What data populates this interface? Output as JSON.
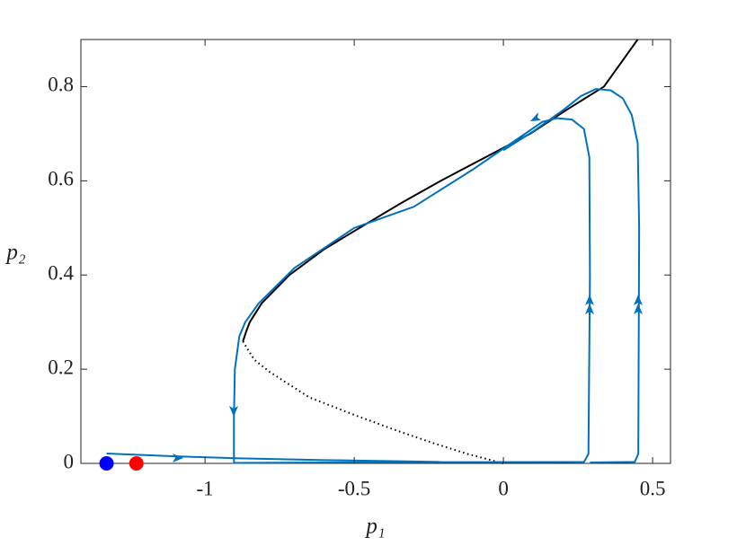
{
  "chart_data": {
    "type": "line",
    "xlabel": "p₁",
    "ylabel": "p₂",
    "xlim": [
      -1.416,
      0.56
    ],
    "ylim": [
      0,
      0.9
    ],
    "xticks": [
      -1,
      -0.5,
      0,
      0.5
    ],
    "yticks": [
      0,
      0.2,
      0.4,
      0.6,
      0.8
    ],
    "series": [
      {
        "color": "#000000",
        "style": "solid",
        "x": [
          -0.873,
          -0.862,
          -0.85,
          -0.81,
          -0.717,
          -0.6,
          -0.482,
          -0.35,
          -0.21,
          -0.06,
          0.09,
          0.21,
          0.337,
          0.45
        ],
        "y": [
          0.259,
          0.28,
          0.3,
          0.34,
          0.4,
          0.455,
          0.5,
          0.55,
          0.6,
          0.65,
          0.7,
          0.75,
          0.8,
          0.9
        ]
      },
      {
        "color": "#000000",
        "style": "dotted",
        "x": [
          -0.873,
          -0.835,
          -0.783,
          -0.65,
          -0.5,
          -0.35,
          -0.24,
          -0.12,
          0
        ],
        "y": [
          0.259,
          0.22,
          0.194,
          0.14,
          0.103,
          0.068,
          0.044,
          0.02,
          0
        ]
      },
      {
        "color": "#0072bd",
        "style": "solid",
        "x": [
          -1.33,
          -1.1,
          -0.9,
          -0.6,
          -0.3,
          -0.22,
          -0.2
        ],
        "y": [
          0.021,
          0.015,
          0.011,
          0.007,
          0.004,
          0.003,
          0.002
        ]
      },
      {
        "color": "#0072bd",
        "style": "solid",
        "x": [
          -0.903,
          -0.6,
          0.27,
          0.285,
          0.29,
          0.288,
          0.27,
          0.23,
          0.18,
          0.13,
          0.05,
          -0.1,
          -0.3,
          -0.5,
          -0.7,
          -0.82,
          -0.865,
          -0.885,
          -0.9,
          -0.903,
          -0.903
        ],
        "y": [
          0.001,
          0.002,
          0.003,
          0.02,
          0.4,
          0.65,
          0.71,
          0.73,
          0.733,
          0.725,
          0.69,
          0.625,
          0.545,
          0.5,
          0.415,
          0.34,
          0.3,
          0.27,
          0.2,
          0.1,
          0
        ]
      },
      {
        "color": "#0072bd",
        "style": "solid",
        "x": [
          0.29,
          0.44,
          0.452,
          0.455,
          0.45,
          0.43,
          0.4,
          0.36,
          0.31,
          0.26,
          0.2,
          0.1,
          0
        ],
        "y": [
          0.002,
          0.003,
          0.02,
          0.5,
          0.68,
          0.74,
          0.775,
          0.792,
          0.795,
          0.78,
          0.75,
          0.705,
          0.665
        ]
      }
    ],
    "points": [
      {
        "x": -1.33,
        "y": 0,
        "color": "#0000ff"
      },
      {
        "x": -1.23,
        "y": 0,
        "color": "#ff0000"
      }
    ]
  }
}
